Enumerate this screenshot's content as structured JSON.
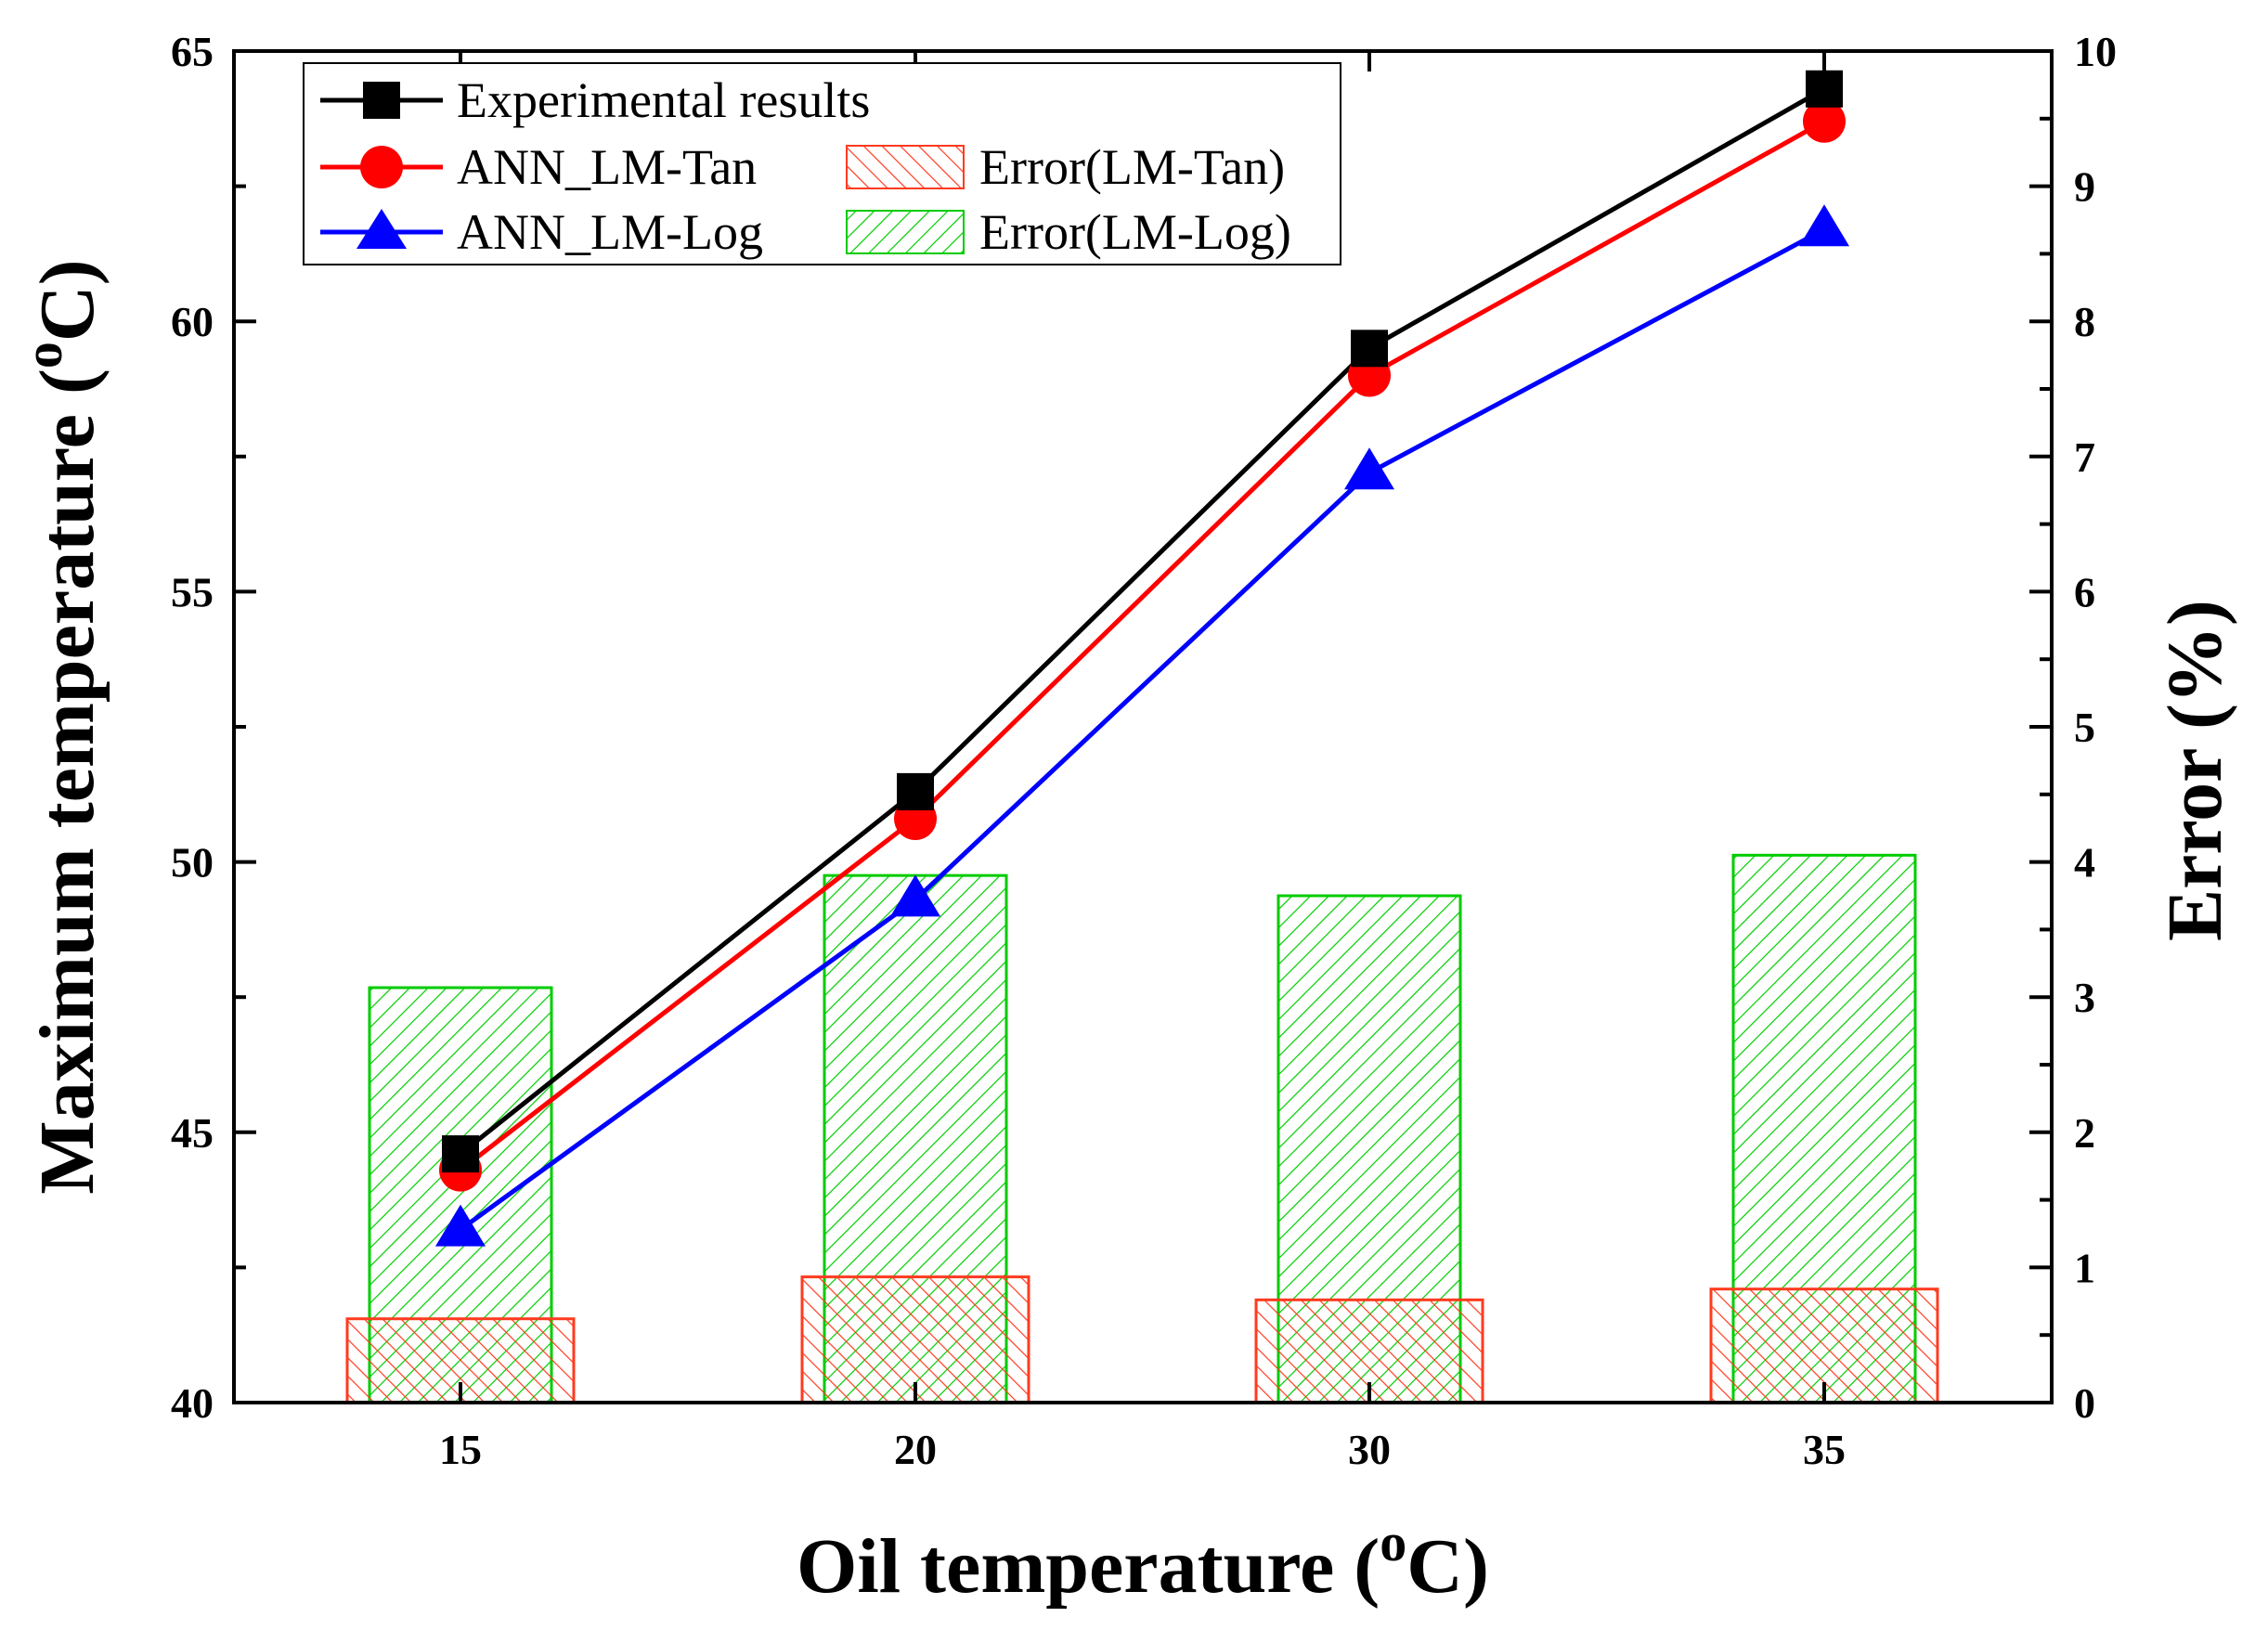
{
  "chart_data": {
    "type": "line",
    "title": "",
    "xlabel": {
      "text": "Oil temperature (",
      "sup": "o",
      "unit": "C)"
    },
    "ylabel_left": {
      "text": "Maximum temperature (",
      "sup": "o",
      "unit": "C)"
    },
    "ylabel_right": "Error (%)",
    "categories": [
      "15",
      "20",
      "30",
      "35"
    ],
    "y_left_range": [
      40,
      65
    ],
    "y_left_ticks": [
      "40",
      "45",
      "50",
      "55",
      "60",
      "65"
    ],
    "y_right_range": [
      0,
      10
    ],
    "y_right_ticks": [
      "0",
      "1",
      "2",
      "3",
      "4",
      "5",
      "6",
      "7",
      "8",
      "9",
      "10"
    ],
    "series": [
      {
        "name": "Experimental results",
        "kind": "line",
        "axis": "left",
        "marker": "square",
        "color": "#000000",
        "values": [
          44.6,
          51.3,
          59.5,
          64.3
        ]
      },
      {
        "name": "ANN_LM-Tan",
        "kind": "line",
        "axis": "left",
        "marker": "circle",
        "color": "#ff0000",
        "values": [
          44.3,
          50.8,
          59.0,
          63.7
        ]
      },
      {
        "name": "ANN_LM-Log",
        "kind": "line",
        "axis": "left",
        "marker": "triangle",
        "color": "#0000ff",
        "values": [
          43.2,
          49.3,
          57.2,
          61.7
        ]
      },
      {
        "name": "Error(LM-Tan)",
        "kind": "bar",
        "axis": "right",
        "color": "#ff0000",
        "hatch": "backslash",
        "values": [
          0.62,
          0.93,
          0.76,
          0.84
        ]
      },
      {
        "name": "Error(LM-Log)",
        "kind": "bar",
        "axis": "right",
        "color": "#00cc00",
        "hatch": "slash",
        "values": [
          3.07,
          3.9,
          3.75,
          4.05
        ]
      }
    ],
    "legend_position": "top-left",
    "grid": false
  }
}
